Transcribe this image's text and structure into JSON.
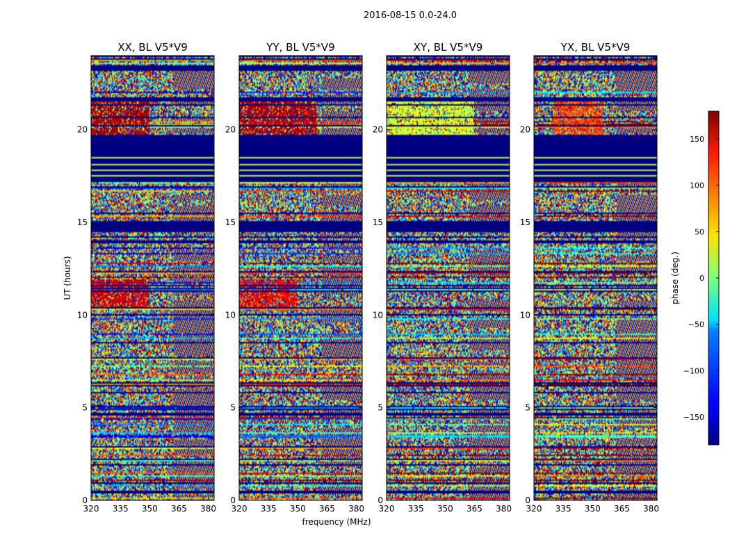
{
  "chart_data": {
    "type": "heatmap",
    "suptitle": "2016-08-15 0.0-24.0",
    "xlabel": "frequency (MHz)",
    "ylabel": "UT (hours)",
    "xlim": [
      320,
      383
    ],
    "ylim": [
      0,
      24
    ],
    "x_ticks": [
      320,
      335,
      350,
      365,
      380
    ],
    "y_ticks": [
      0,
      5,
      10,
      15,
      20
    ],
    "panels": [
      {
        "id": "xx",
        "title": "XX, BL V5*V9"
      },
      {
        "id": "yy",
        "title": "YY, BL V5*V9"
      },
      {
        "id": "xy",
        "title": "XY, BL V5*V9"
      },
      {
        "id": "yx",
        "title": "YX, BL V5*V9"
      }
    ],
    "colorbar": {
      "label": "phase (deg.)",
      "range": [
        -180,
        180
      ],
      "ticks": [
        150,
        100,
        50,
        0,
        -50,
        -100,
        -150
      ],
      "colormap": "jet"
    },
    "flagged_value": -180,
    "flagged_intervals_hours": [
      [
        17.2,
        19.7
      ],
      [
        14.45,
        15.1
      ],
      [
        23.15,
        23.45
      ]
    ],
    "blank_gap_hours": [
      0.95,
      1.9,
      2.9,
      6.2,
      10.4,
      14.2,
      16.9,
      21.6
    ],
    "coherent_phase_bands": [
      {
        "panel": "xx",
        "ut": [
          19.7,
          21.6
        ],
        "freq": [
          320,
          350
        ],
        "phase": 165
      },
      {
        "panel": "yy",
        "ut": [
          19.7,
          21.6
        ],
        "freq": [
          320,
          360
        ],
        "phase": 160
      },
      {
        "panel": "xy",
        "ut": [
          19.7,
          21.6
        ],
        "freq": [
          320,
          365
        ],
        "phase": 30
      },
      {
        "panel": "yx",
        "ut": [
          19.7,
          21.6
        ],
        "freq": [
          330,
          355
        ],
        "phase": 110
      },
      {
        "panel": "xx",
        "ut": [
          10.4,
          11.9
        ],
        "freq": [
          320,
          350
        ],
        "phase": 150
      },
      {
        "panel": "yy",
        "ut": [
          10.4,
          11.9
        ],
        "freq": [
          320,
          350
        ],
        "phase": 140
      }
    ]
  }
}
